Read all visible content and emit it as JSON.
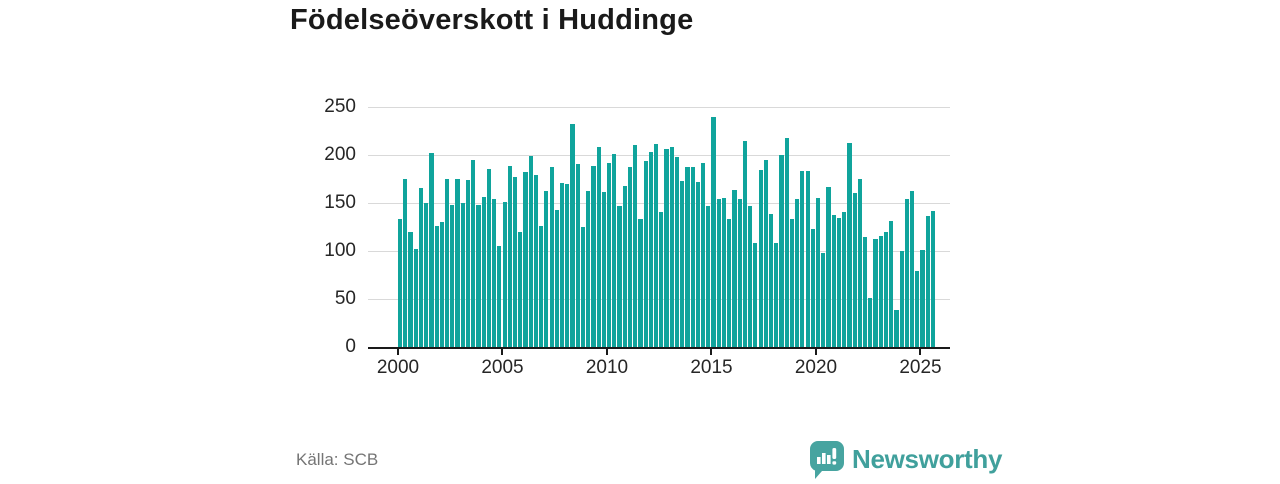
{
  "header": {
    "title": "Födelseöverskott i Huddinge"
  },
  "footer": {
    "source_label": "Källa: SCB",
    "brand_name": "Newsworthy"
  },
  "colors": {
    "bar": "#10a49c",
    "brand_teal": "#40a09c",
    "grid": "#d9d9d9",
    "axis": "#1a1a1a",
    "tick_text": "#262626",
    "source_text": "#757575"
  },
  "chart_data": {
    "type": "bar",
    "title": "Födelseöverskott i Huddinge",
    "xlabel": "",
    "ylabel": "",
    "grid": true,
    "legend": "none",
    "ylim": [
      0,
      250
    ],
    "yticks": [
      0,
      50,
      100,
      150,
      200,
      250
    ],
    "xticks": [
      2000,
      2005,
      2010,
      2015,
      2020,
      2025
    ],
    "x_unit": "quarter",
    "categories": [
      "2000Q1",
      "2000Q2",
      "2000Q3",
      "2000Q4",
      "2001Q1",
      "2001Q2",
      "2001Q3",
      "2001Q4",
      "2002Q1",
      "2002Q2",
      "2002Q3",
      "2002Q4",
      "2003Q1",
      "2003Q2",
      "2003Q3",
      "2003Q4",
      "2004Q1",
      "2004Q2",
      "2004Q3",
      "2004Q4",
      "2005Q1",
      "2005Q2",
      "2005Q3",
      "2005Q4",
      "2006Q1",
      "2006Q2",
      "2006Q3",
      "2006Q4",
      "2007Q1",
      "2007Q2",
      "2007Q3",
      "2007Q4",
      "2008Q1",
      "2008Q2",
      "2008Q3",
      "2008Q4",
      "2009Q1",
      "2009Q2",
      "2009Q3",
      "2009Q4",
      "2010Q1",
      "2010Q2",
      "2010Q3",
      "2010Q4",
      "2011Q1",
      "2011Q2",
      "2011Q3",
      "2011Q4",
      "2012Q1",
      "2012Q2",
      "2012Q3",
      "2012Q4",
      "2013Q1",
      "2013Q2",
      "2013Q3",
      "2013Q4",
      "2014Q1",
      "2014Q2",
      "2014Q3",
      "2014Q4",
      "2015Q1",
      "2015Q2",
      "2015Q3",
      "2015Q4",
      "2016Q1",
      "2016Q2",
      "2016Q3",
      "2016Q4",
      "2017Q1",
      "2017Q2",
      "2017Q3",
      "2017Q4",
      "2018Q1",
      "2018Q2",
      "2018Q3",
      "2018Q4",
      "2019Q1",
      "2019Q2",
      "2019Q3",
      "2019Q4",
      "2020Q1",
      "2020Q2",
      "2020Q3",
      "2020Q4",
      "2021Q1",
      "2021Q2",
      "2021Q3",
      "2021Q4",
      "2022Q1",
      "2022Q2",
      "2022Q3",
      "2022Q4",
      "2023Q1",
      "2023Q2",
      "2023Q3",
      "2023Q4",
      "2024Q1",
      "2024Q2",
      "2024Q3",
      "2024Q4",
      "2025Q1",
      "2025Q2",
      "2025Q3"
    ],
    "values": [
      133,
      175,
      120,
      102,
      166,
      150,
      202,
      126,
      130,
      175,
      148,
      175,
      150,
      174,
      195,
      148,
      156,
      185,
      154,
      105,
      151,
      189,
      177,
      120,
      182,
      199,
      179,
      126,
      163,
      187,
      143,
      171,
      170,
      232,
      191,
      125,
      162,
      189,
      208,
      161,
      192,
      201,
      147,
      168,
      188,
      210,
      133,
      194,
      203,
      211,
      141,
      206,
      208,
      198,
      173,
      187,
      188,
      172,
      192,
      147,
      240,
      154,
      155,
      133,
      164,
      154,
      215,
      147,
      108,
      184,
      195,
      139,
      108,
      200,
      218,
      133,
      154,
      183,
      183,
      123,
      155,
      98,
      167,
      138,
      134,
      141,
      213,
      160,
      175,
      115,
      51,
      112,
      116,
      120,
      131,
      39,
      100,
      154,
      162,
      79,
      101,
      136,
      142
    ]
  }
}
